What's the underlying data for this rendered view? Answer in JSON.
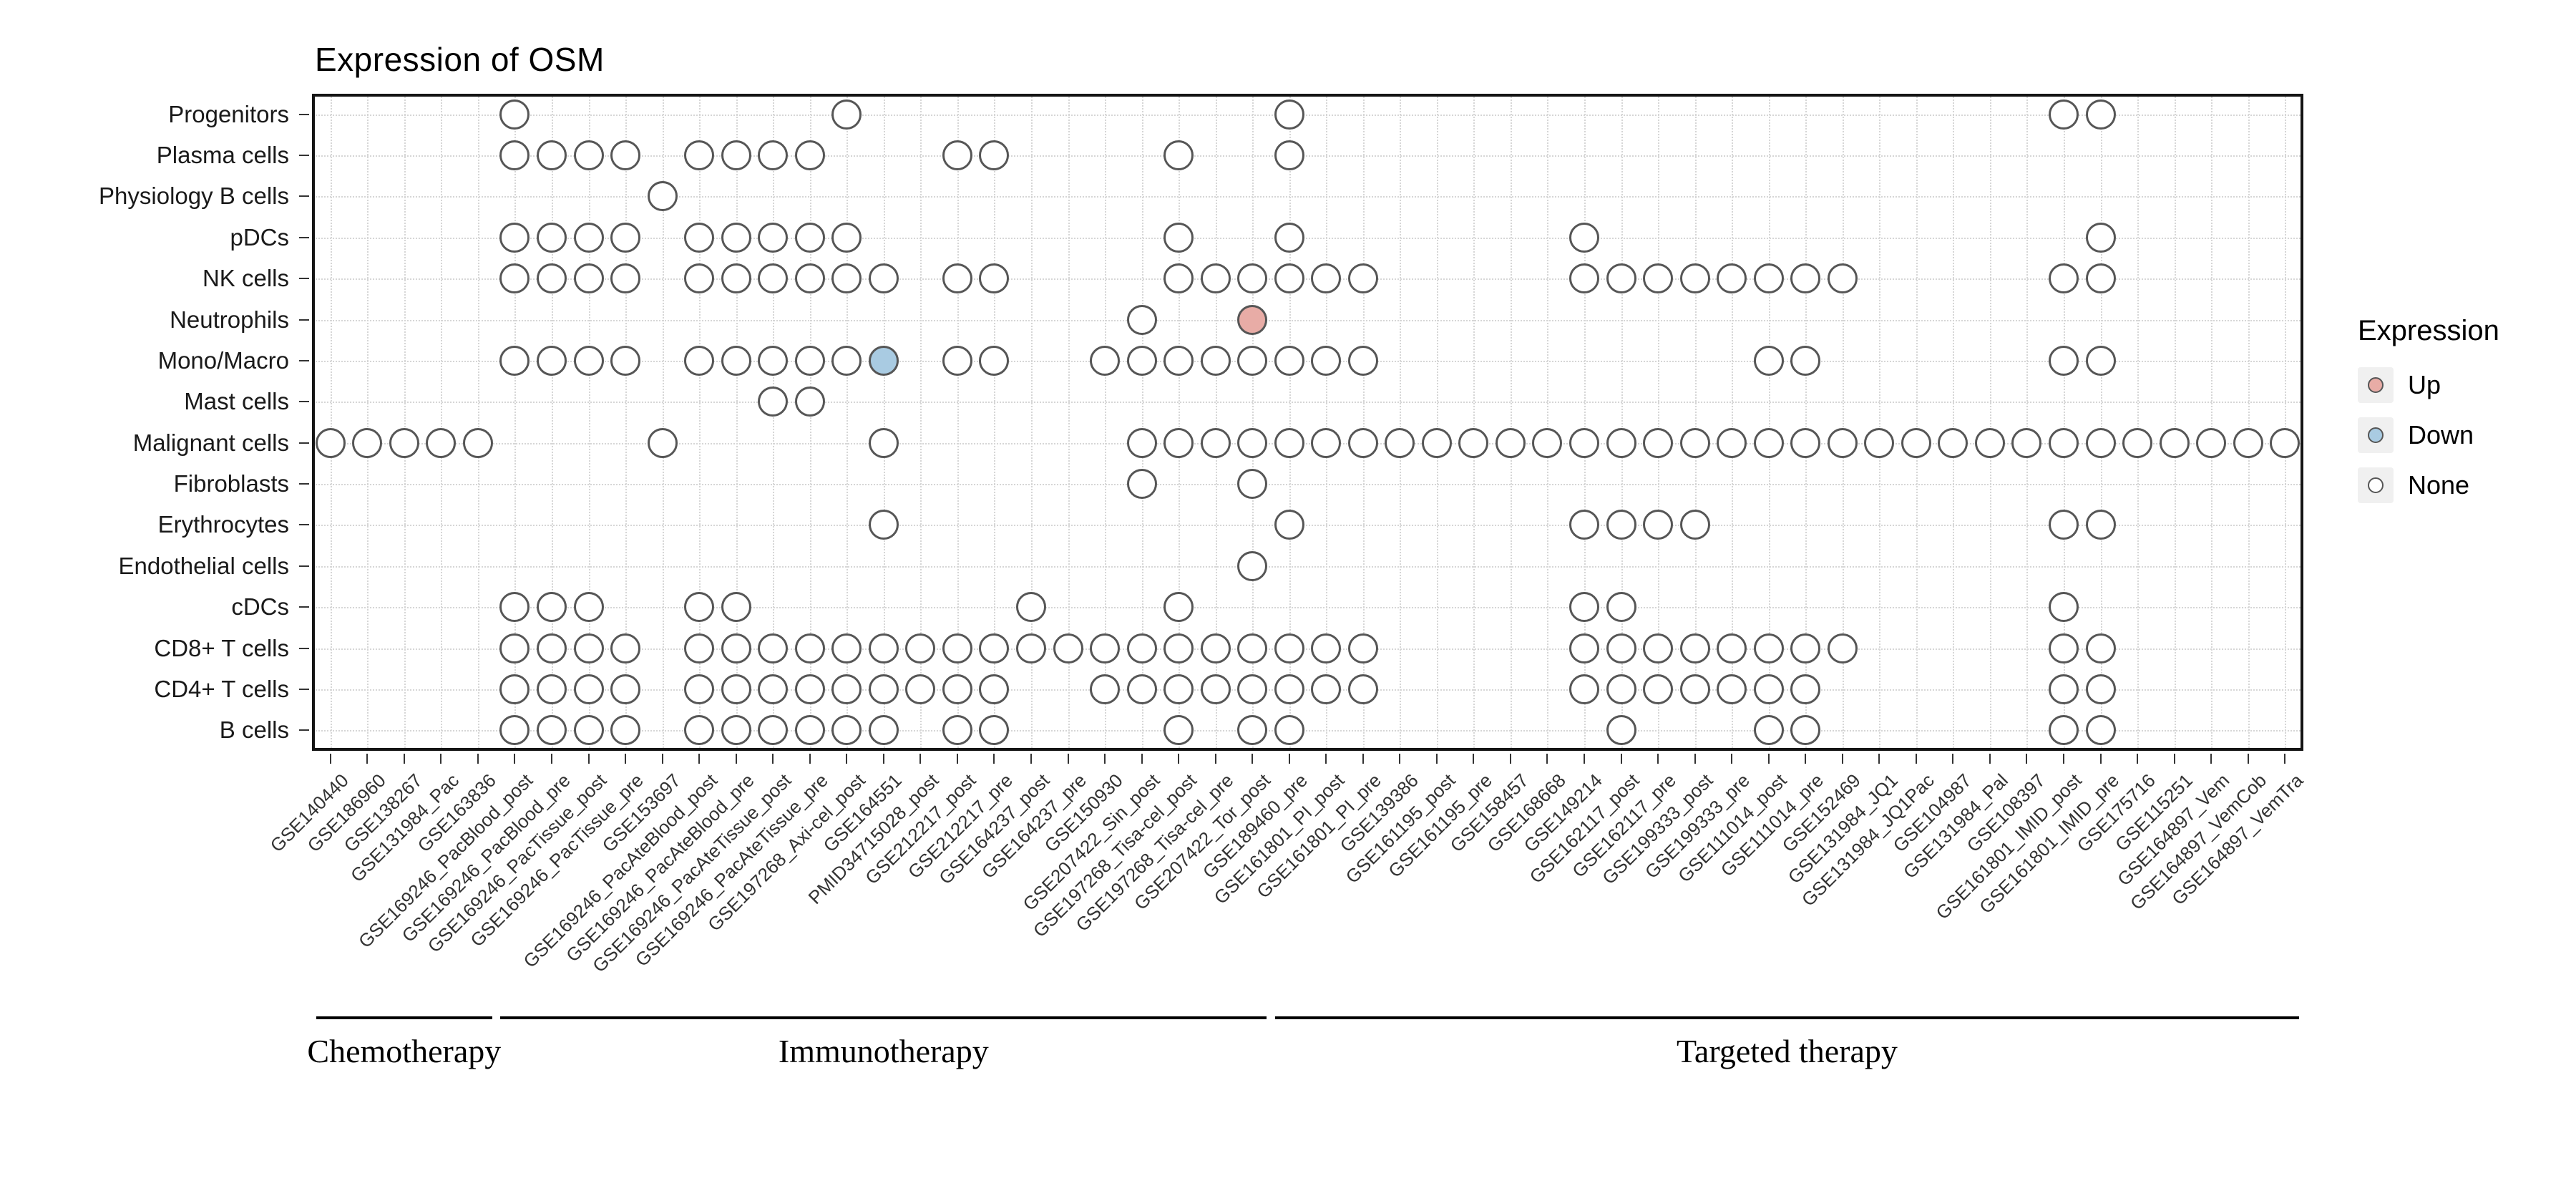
{
  "title": "Expression of OSM",
  "legend": {
    "title": "Expression",
    "items": [
      {
        "label": "Up",
        "color": "#E8ACA6"
      },
      {
        "label": "Down",
        "color": "#A9CBE2"
      },
      {
        "label": "None",
        "color": "#FFFFFF"
      }
    ]
  },
  "chart_data": {
    "type": "scatter",
    "title": "Expression of OSM",
    "legend_position": "right",
    "grid": "dotted",
    "matrix_legend": {
      ".": "absent",
      "o": "None",
      "U": "Up",
      "D": "Down"
    },
    "rows": [
      "Progenitors",
      "Plasma cells",
      "Physiology B cells",
      "pDCs",
      "NK cells",
      "Neutrophils",
      "Mono/Macro",
      "Mast cells",
      "Malignant cells",
      "Fibroblasts",
      "Erythrocytes",
      "Endothelial cells",
      "cDCs",
      "CD8+ T cells",
      "CD4+ T cells",
      "B cells"
    ],
    "columns": [
      "GSE140440",
      "GSE186960",
      "GSE138267",
      "GSE131984_Pac",
      "GSE163836",
      "GSE169246_PacBlood_post",
      "GSE169246_PacBlood_pre",
      "GSE169246_PacTissue_post",
      "GSE169246_PacTissue_pre",
      "GSE153697",
      "GSE169246_PacAteBlood_post",
      "GSE169246_PacAteBlood_pre",
      "GSE169246_PacAteTissue_post",
      "GSE169246_PacAteTissue_pre",
      "GSE197268_Axi-cel_post",
      "GSE164551",
      "PMID34715028_post",
      "GSE212217_post",
      "GSE212217_pre",
      "GSE164237_post",
      "GSE164237_pre",
      "GSE150930",
      "GSE207422_Sin_post",
      "GSE197268_Tisa-cel_post",
      "GSE197268_Tisa-cel_pre",
      "GSE207422_Tor_post",
      "GSE189460_pre",
      "GSE161801_PI_post",
      "GSE161801_PI_pre",
      "GSE139386",
      "GSE161195_post",
      "GSE161195_pre",
      "GSE158457",
      "GSE168668",
      "GSE149214",
      "GSE162117_post",
      "GSE162117_pre",
      "GSE199333_post",
      "GSE199333_pre",
      "GSE111014_post",
      "GSE111014_pre",
      "GSE152469",
      "GSE131984_JQ1",
      "GSE131984_JQ1Pac",
      "GSE104987",
      "GSE131984_Pal",
      "GSE108397",
      "GSE161801_IMID_post",
      "GSE161801_IMID_pre",
      "GSE175716",
      "GSE115251",
      "GSE164897_Vem",
      "GSE164897_VemCob",
      "GSE164897_VemTra"
    ],
    "groups": [
      {
        "label": "Chemotherapy",
        "start": 0,
        "end": 4
      },
      {
        "label": "Immunotherapy",
        "start": 5,
        "end": 25
      },
      {
        "label": "Targeted therapy",
        "start": 26,
        "end": 53
      }
    ],
    "matrix": [
      ".....o........o...........o....................oo.....",
      ".....oooo.oooo...oo....o..o...........................",
      ".........o............................................",
      ".....oooo.ooooo........o..o.......o.............o.....",
      ".....oooo.oooooo.oo....oooooo.....oooooooo.....oo.....",
      "......................o..U............................",
      ".....oooo.oooooD.oo..oooooooo..........oo......oo.....",
      "............oo........................................",
      "ooooo....o.....o......oooooooooooooooooooooooooooooooo",
      "......................o..o............................",
      "...............o..........o.......oooo.........oo.....",
      ".........................o............................",
      ".....ooo..oo.......o...o..........oo...........o......",
      ".....oooo.ooooooooooooooooooo.....oooooooo.....oo.....",
      ".....oooo.ooooooooo..oooooooo.....ooooooo......oo.....",
      ".....oooo.oooooo.oo....o.oo........o...oo......oo....."
    ]
  }
}
